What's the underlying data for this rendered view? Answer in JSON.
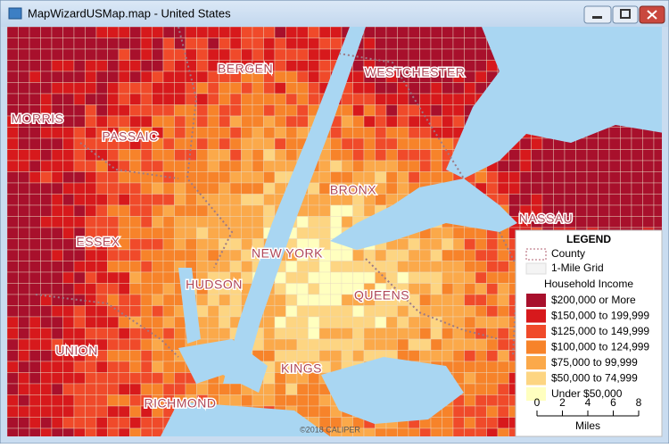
{
  "window": {
    "title": "MapWizardUSMap.map - United States"
  },
  "map": {
    "labels": [
      "BERGEN",
      "WESTCHESTER",
      "MORRIS",
      "PASSAIC",
      "BRONX",
      "NASSAU",
      "ESSEX",
      "NEW YORK",
      "HUDSON",
      "QUEENS",
      "UNION",
      "KINGS",
      "RICHMOND"
    ],
    "copyright": "©2018 CALIPER"
  },
  "legend": {
    "title": "LEGEND",
    "layers": [
      "County",
      "1-Mile Grid"
    ],
    "theme_title": "Household Income",
    "items": [
      {
        "label": "$200,000 or More",
        "color": "#a8102c"
      },
      {
        "label": "$150,000 to 199,999",
        "color": "#d7191c"
      },
      {
        "label": "$125,000 to 149,999",
        "color": "#f04a2a"
      },
      {
        "label": "$100,000 to 124,999",
        "color": "#f7832a"
      },
      {
        "label": "$75,000 to 99,999",
        "color": "#fba94a"
      },
      {
        "label": "$50,000 to 74,999",
        "color": "#fdd582"
      },
      {
        "label": "Under $50,000",
        "color": "#ffffbf"
      }
    ]
  },
  "scale": {
    "ticks": [
      0,
      2,
      4,
      6,
      8
    ],
    "unit": "Miles"
  }
}
